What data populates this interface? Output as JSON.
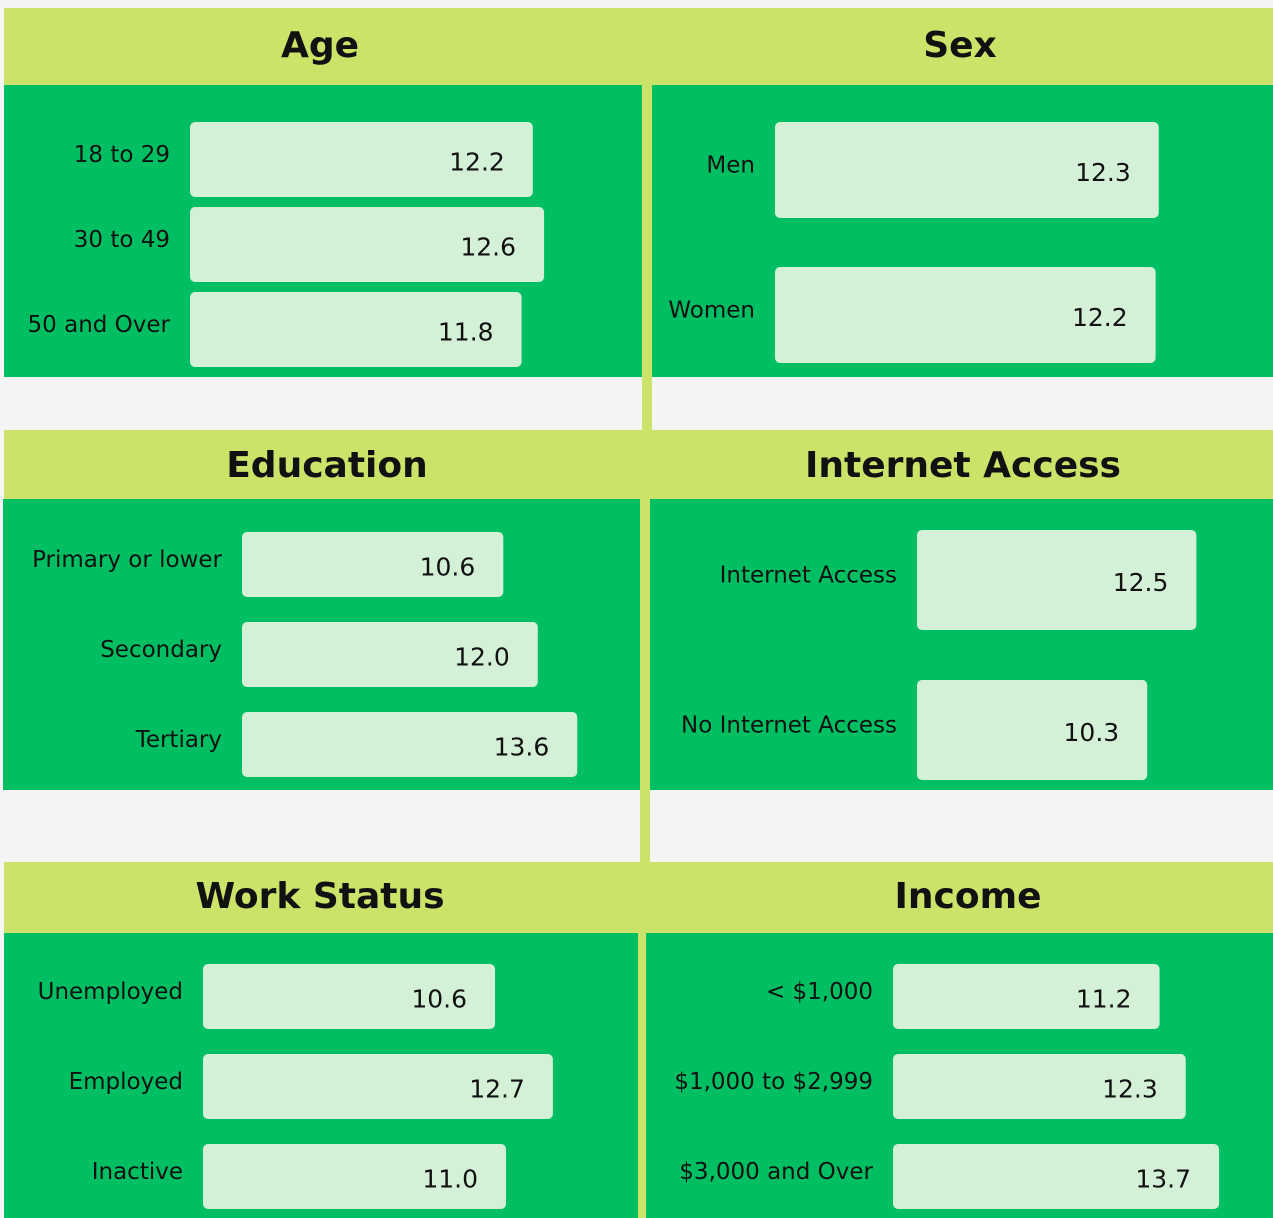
{
  "chart_data": [
    {
      "type": "bar",
      "title": "Age",
      "categories": [
        "18 to 29",
        "30 to 49",
        "50 and Over"
      ],
      "values": [
        12.2,
        12.6,
        11.8
      ],
      "value_labels": [
        "12.2",
        "12.6",
        "11.8"
      ],
      "color": "#d4f1d8"
    },
    {
      "type": "bar",
      "title": "Sex",
      "categories": [
        "Men",
        "Women"
      ],
      "values": [
        12.3,
        12.2
      ],
      "value_labels": [
        "12.3",
        "12.2"
      ],
      "color": "#d4f1d8"
    },
    {
      "type": "bar",
      "title": "Education",
      "categories": [
        "Primary or lower",
        "Secondary",
        "Tertiary"
      ],
      "values": [
        10.6,
        12.0,
        13.6
      ],
      "value_labels": [
        "10.6",
        "12.0",
        "13.6"
      ],
      "color": "#d4f1d8"
    },
    {
      "type": "bar",
      "title": "Internet Access",
      "categories": [
        "Internet Access",
        "No Internet Access"
      ],
      "values": [
        12.5,
        10.3
      ],
      "value_labels": [
        "12.5",
        "10.3"
      ],
      "color": "#d4f1d8"
    },
    {
      "type": "bar",
      "title": "Work Status",
      "categories": [
        "Unemployed",
        "Employed",
        "Inactive"
      ],
      "values": [
        10.6,
        12.7,
        11.0
      ],
      "value_labels": [
        "10.6",
        "12.7",
        "11.0"
      ],
      "color": "#d4f1d8"
    },
    {
      "type": "bar",
      "title": "Income",
      "categories": [
        "< $1,000",
        "$1,000 to $2,999",
        "$3,000 and Over"
      ],
      "values": [
        11.2,
        12.3,
        13.7
      ],
      "value_labels": [
        "11.2",
        "12.3",
        "13.7"
      ],
      "color": "#d4f1d8"
    }
  ]
}
